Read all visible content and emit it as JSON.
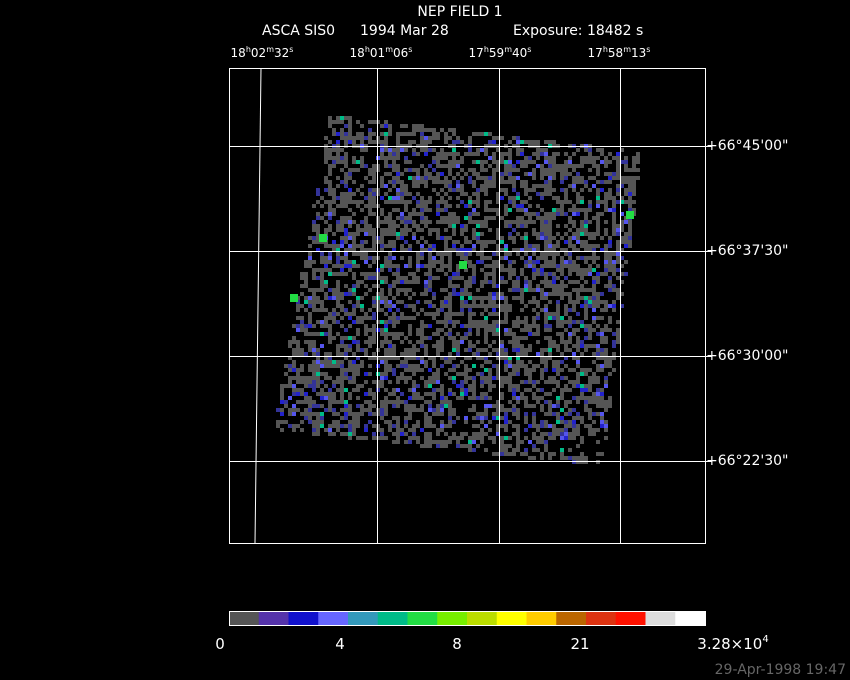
{
  "title": "NEP FIELD 1",
  "subtitle": [
    "ASCA SIS0",
    "1994 Mar 28",
    "Exposure: 18482 s"
  ],
  "ra_labels": [
    [
      "18",
      "h",
      "02",
      "m",
      "32",
      "s"
    ],
    [
      "18",
      "h",
      "01",
      "m",
      "06",
      "s"
    ],
    [
      "17",
      "h",
      "59",
      "m",
      "40",
      "s"
    ],
    [
      "17",
      "h",
      "58",
      "m",
      "13",
      "s"
    ]
  ],
  "dec_labels": [
    "+66°45'00\"",
    "+66°37'30\"",
    "+66°30'00\"",
    "+66°22'30\""
  ],
  "colorbar": {
    "colors": [
      "#555555",
      "#5533aa",
      "#1111cc",
      "#6666ff",
      "#3399bb",
      "#00bb88",
      "#22dd44",
      "#77ee00",
      "#bbdd00",
      "#ffff00",
      "#ffcc00",
      "#bb6600",
      "#dd3311",
      "#ff1100",
      "#dddddd",
      "#ffffff"
    ],
    "labels": [
      [
        "0"
      ],
      [
        "4"
      ],
      [
        "8"
      ],
      [
        "21"
      ],
      [
        "3.28×10",
        "4"
      ]
    ]
  },
  "timestamp": "29-Apr-1998 19:47"
}
